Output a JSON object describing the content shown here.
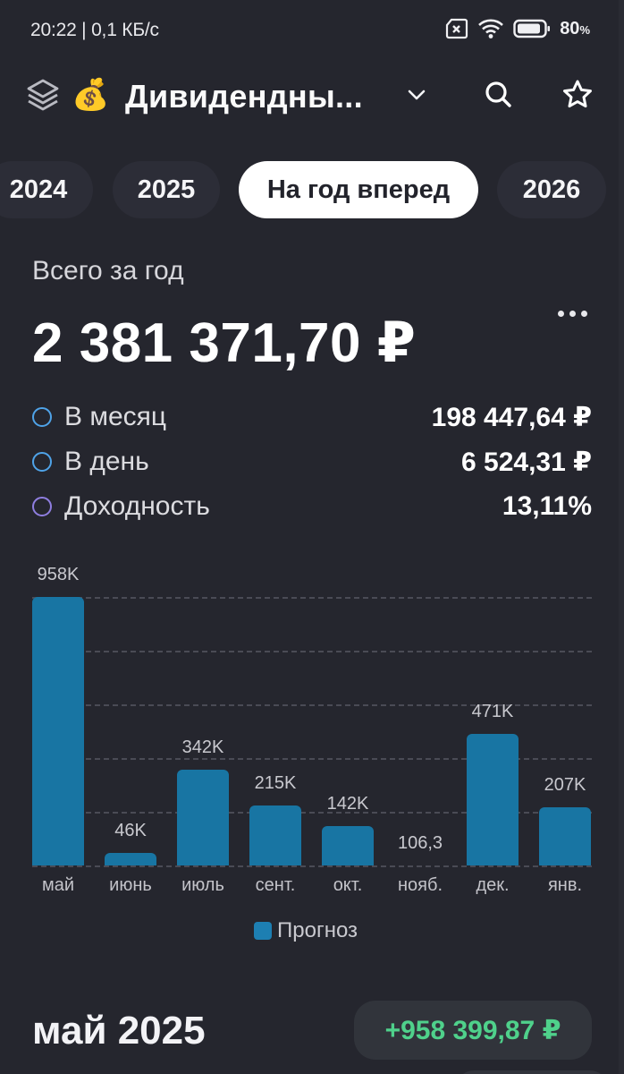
{
  "status_bar": {
    "time_speed": "20:22 | 0,1 КБ/с",
    "battery_percent": "80",
    "battery_percent_sign": "%",
    "icons": [
      "sim-error-icon",
      "wifi-icon",
      "battery-icon"
    ]
  },
  "header": {
    "title_emoji": "💰",
    "title": "Дивидендны...",
    "icons": [
      "layers-icon",
      "chevron-down-icon",
      "search-icon",
      "star-icon"
    ]
  },
  "year_tabs": [
    {
      "label": "2024",
      "active": false
    },
    {
      "label": "2025",
      "active": false
    },
    {
      "label": "На год вперед",
      "active": true
    },
    {
      "label": "2026",
      "active": false
    }
  ],
  "summary": {
    "total_label": "Всего за год",
    "total_value": "2 381 371,70 ₽",
    "stats": [
      {
        "label": "В месяц",
        "value": "198 447,64 ₽",
        "color": "#4fa3e8"
      },
      {
        "label": "В день",
        "value": "6 524,31 ₽",
        "color": "#4fa3e8"
      },
      {
        "label": "Доходность",
        "value": "13,11%",
        "color": "#8f7ee0"
      }
    ]
  },
  "chart_data": {
    "type": "bar",
    "title": "",
    "xlabel": "",
    "ylabel": "",
    "categories": [
      "май",
      "июнь",
      "июль",
      "сент.",
      "окт.",
      "нояб.",
      "дек.",
      "янв."
    ],
    "values": [
      958000,
      46000,
      342000,
      215000,
      142000,
      106.3,
      471000,
      207000
    ],
    "data_labels": [
      "958K",
      "46K",
      "342K",
      "215K",
      "142K",
      "106,3",
      "471K",
      "207K"
    ],
    "series": [
      {
        "name": "Прогноз",
        "color": "#1875a3"
      }
    ],
    "ylim": [
      0,
      958000
    ],
    "grid": true,
    "gridlines": 6,
    "legend_position": "bottom"
  },
  "legend": {
    "label": "Прогноз"
  },
  "month_section": {
    "title": "май 2025",
    "amount": "+958 399,87 ₽"
  }
}
